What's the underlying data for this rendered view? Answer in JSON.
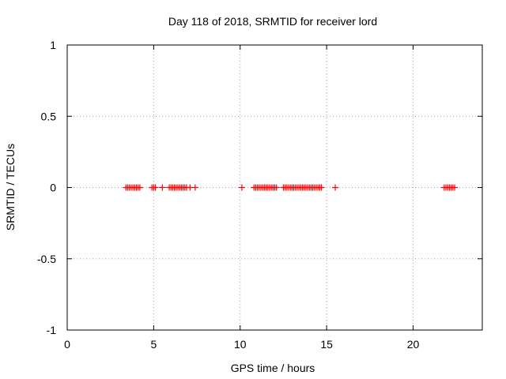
{
  "chart_data": {
    "type": "scatter",
    "title": "Day 118 of 2018, SRMTID for receiver lord",
    "xlabel": "GPS time / hours",
    "ylabel": "SRMTID / TECUs",
    "xlim": [
      0,
      24
    ],
    "ylim": [
      -1,
      1
    ],
    "xticks": [
      0,
      5,
      10,
      15,
      20
    ],
    "xtick_labels": [
      "0",
      "5",
      "10",
      "15",
      "20"
    ],
    "yticks": [
      1,
      0.5,
      0,
      -0.5,
      -1
    ],
    "ytick_labels": [
      "1",
      "0.5",
      "0",
      "-0.5",
      "-1"
    ],
    "grid": true,
    "marker": "+",
    "color": "#ff0000",
    "x": [
      3.4,
      3.5,
      3.6,
      3.7,
      3.8,
      3.9,
      4.0,
      4.1,
      4.2,
      4.9,
      5.0,
      5.1,
      5.5,
      5.9,
      6.0,
      6.1,
      6.2,
      6.3,
      6.4,
      6.5,
      6.6,
      6.7,
      6.8,
      6.9,
      7.1,
      7.4,
      10.1,
      10.8,
      10.9,
      11.0,
      11.1,
      11.2,
      11.3,
      11.4,
      11.5,
      11.6,
      11.7,
      11.8,
      11.9,
      12.0,
      12.1,
      12.5,
      12.6,
      12.7,
      12.8,
      12.9,
      13.0,
      13.1,
      13.2,
      13.3,
      13.4,
      13.5,
      13.6,
      13.7,
      13.8,
      13.9,
      14.0,
      14.1,
      14.2,
      14.3,
      14.4,
      14.5,
      14.6,
      14.7,
      15.5,
      21.8,
      21.9,
      22.0,
      22.1,
      22.2,
      22.3,
      22.4
    ],
    "y": [
      0,
      0,
      0,
      0,
      0,
      0,
      0,
      0,
      0,
      0,
      0,
      0,
      0,
      0,
      0,
      0,
      0,
      0,
      0,
      0,
      0,
      0,
      0,
      0,
      0,
      0,
      0,
      0,
      0,
      0,
      0,
      0,
      0,
      0,
      0,
      0,
      0,
      0,
      0,
      0,
      0,
      0,
      0,
      0,
      0,
      0,
      0,
      0,
      0,
      0,
      0,
      0,
      0,
      0,
      0,
      0,
      0,
      0,
      0,
      0,
      0,
      0,
      0,
      0,
      0,
      0,
      0,
      0,
      0,
      0,
      0,
      0
    ]
  }
}
